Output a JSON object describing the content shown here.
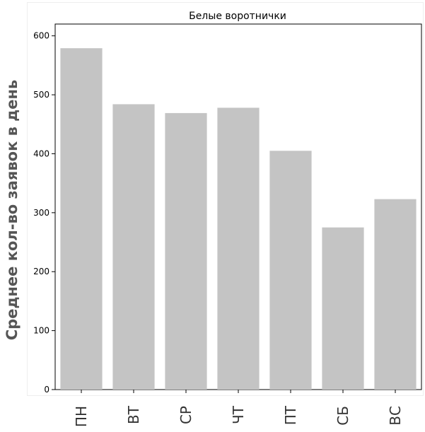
{
  "chart_data": {
    "type": "bar",
    "title": "Белые воротнички",
    "ylabel": "Среднее кол-во заявок в день",
    "xlabel": "",
    "categories": [
      "ПН",
      "ВТ",
      "СР",
      "ЧТ",
      "ПТ",
      "СБ",
      "ВС"
    ],
    "values": [
      579,
      484,
      469,
      478,
      405,
      275,
      323
    ],
    "ylim": [
      0,
      620
    ],
    "yticks": [
      0,
      100,
      200,
      300,
      400,
      500,
      600
    ],
    "grid": false,
    "bar_color": "#c4c4c4"
  }
}
